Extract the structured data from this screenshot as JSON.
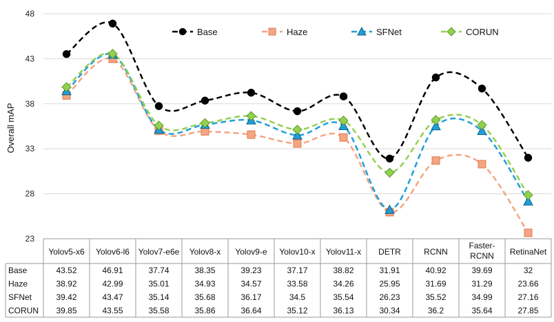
{
  "chart_data": {
    "type": "line",
    "ylabel": "Overall mAP",
    "xlabel": "",
    "ylim": [
      23,
      48
    ],
    "yticks": [
      23,
      28,
      33,
      38,
      43,
      48
    ],
    "grid": "horizontal",
    "legend_position": "top-right",
    "categories": [
      "Yolov5-x6",
      "Yolov6-l6",
      "Yolov7-e6e",
      "Yolov8-x",
      "Yolov9-e",
      "Yolov10-x",
      "Yolov11-x",
      "DETR",
      "RCNN",
      "Faster-RCNN",
      "RetinaNet"
    ],
    "category_lines": [
      [
        "Yolov5-x6"
      ],
      [
        "Yolov6-l6"
      ],
      [
        "Yolov7-e6e"
      ],
      [
        "Yolov8-x"
      ],
      [
        "Yolov9-e"
      ],
      [
        "Yolov10-x"
      ],
      [
        "Yolov11-x"
      ],
      [
        "DETR"
      ],
      [
        "RCNN"
      ],
      [
        "Faster-",
        "RCNN"
      ],
      [
        "RetinaNet"
      ]
    ],
    "series": [
      {
        "name": "Base",
        "color": "#000000",
        "marker": "circle",
        "values": [
          43.52,
          46.91,
          37.74,
          38.35,
          39.23,
          37.17,
          38.82,
          31.91,
          40.92,
          39.69,
          32
        ]
      },
      {
        "name": "Haze",
        "color": "#f4a582",
        "marker": "square",
        "values": [
          38.92,
          42.99,
          35.01,
          34.93,
          34.57,
          33.58,
          34.26,
          25.95,
          31.69,
          31.29,
          23.66
        ]
      },
      {
        "name": "SFNet",
        "color": "#1f9fd8",
        "marker": "triangle",
        "values": [
          39.42,
          43.47,
          35.14,
          35.68,
          36.17,
          34.5,
          35.54,
          26.23,
          35.52,
          34.99,
          27.16
        ]
      },
      {
        "name": "CORUN",
        "color": "#92d050",
        "marker": "diamond",
        "values": [
          39.85,
          43.55,
          35.58,
          35.86,
          36.64,
          35.12,
          36.13,
          30.34,
          36.2,
          35.64,
          27.85
        ]
      }
    ],
    "table_rows": [
      {
        "name": "Base",
        "cells": [
          "43.52",
          "46.91",
          "37.74",
          "38.35",
          "39.23",
          "37.17",
          "38.82",
          "31.91",
          "40.92",
          "39.69",
          "32"
        ]
      },
      {
        "name": "Haze",
        "cells": [
          "38.92",
          "42.99",
          "35.01",
          "34.93",
          "34.57",
          "33.58",
          "34.26",
          "25.95",
          "31.69",
          "31.29",
          "23.66"
        ]
      },
      {
        "name": "SFNet",
        "cells": [
          "39.42",
          "43.47",
          "35.14",
          "35.68",
          "36.17",
          "34.5",
          "35.54",
          "26.23",
          "35.52",
          "34.99",
          "27.16"
        ]
      },
      {
        "name": "CORUN",
        "cells": [
          "39.85",
          "43.55",
          "35.58",
          "35.86",
          "36.64",
          "35.12",
          "36.13",
          "30.34",
          "36.2",
          "35.64",
          "27.85"
        ]
      }
    ]
  }
}
